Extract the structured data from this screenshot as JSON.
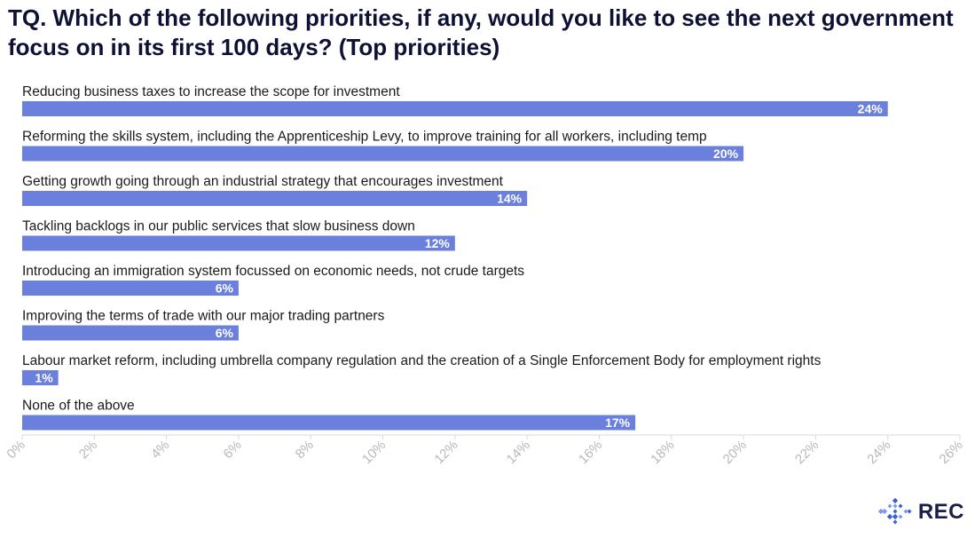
{
  "chart_data": {
    "type": "bar",
    "orientation": "horizontal",
    "title": "TQ. Which of the following priorities, if any, would you like to see the next government focus on in its first 100 days? (Top priorities)",
    "categories": [
      "Reducing business taxes to increase the scope for investment",
      "Reforming the skills system, including the Apprenticeship Levy, to improve training for all workers, including temp",
      "Getting growth going through an industrial strategy that encourages investment",
      "Tackling backlogs in our public services that slow business down",
      "Introducing an immigration system focussed on economic needs, not crude targets",
      "Improving the terms of trade with our major trading partners",
      "Labour market reform, including umbrella company regulation and the creation of a Single Enforcement Body for employment rights",
      "None of the above"
    ],
    "values": [
      24,
      20,
      14,
      12,
      6,
      6,
      1,
      17
    ],
    "value_labels": [
      "24%",
      "20%",
      "14%",
      "12%",
      "6%",
      "6%",
      "1%",
      "17%"
    ],
    "xlim": [
      0,
      26
    ],
    "xticks": [
      "0%",
      "2%",
      "4%",
      "6%",
      "8%",
      "10%",
      "12%",
      "14%",
      "16%",
      "18%",
      "20%",
      "22%",
      "24%",
      "26%"
    ],
    "bar_color": "#6b7fdc",
    "grid": false
  },
  "logo": {
    "text": "REC",
    "color": "#3a5fd0"
  }
}
